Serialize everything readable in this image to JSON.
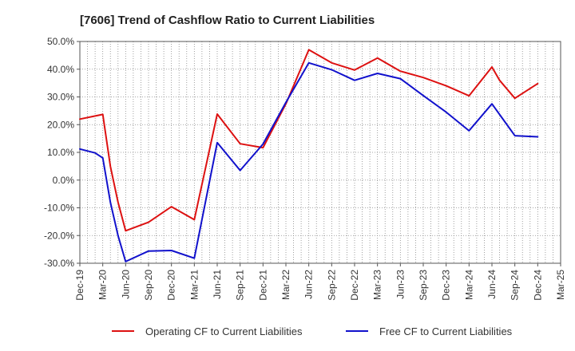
{
  "chart_data": {
    "type": "line",
    "title": "[7606]  Trend of Cashflow Ratio to Current Liabilities",
    "xlabel": "",
    "ylabel": "",
    "ylim": [
      -30,
      50
    ],
    "y_ticks": [
      "50.0%",
      "40.0%",
      "30.0%",
      "20.0%",
      "10.0%",
      "0.0%",
      "-10.0%",
      "-20.0%",
      "-30.0%"
    ],
    "y_tick_values": [
      50,
      40,
      30,
      20,
      10,
      0,
      -10,
      -20,
      -30
    ],
    "x_tick_labels": [
      "Dec-19",
      "Mar-20",
      "Jun-20",
      "Sep-20",
      "Dec-20",
      "Mar-21",
      "Jun-21",
      "Sep-21",
      "Dec-21",
      "Mar-22",
      "Jun-22",
      "Sep-22",
      "Dec-22",
      "Mar-23",
      "Jun-23",
      "Sep-23",
      "Dec-23",
      "Mar-24",
      "Jun-24",
      "Sep-24",
      "Dec-24",
      "Mar-25"
    ],
    "categories": [
      "Dec-19",
      "Jan-20",
      "Feb-20",
      "Mar-20",
      "Apr-20",
      "May-20",
      "Jun-20",
      "Jul-20",
      "Aug-20",
      "Sep-20",
      "Oct-20",
      "Nov-20",
      "Dec-20",
      "Jan-21",
      "Feb-21",
      "Mar-21",
      "Apr-21",
      "May-21",
      "Jun-21",
      "Jul-21",
      "Aug-21",
      "Sep-21",
      "Oct-21",
      "Nov-21",
      "Dec-21",
      "Jan-22",
      "Feb-22",
      "Mar-22",
      "Apr-22",
      "May-22",
      "Jun-22",
      "Jul-22",
      "Aug-22",
      "Sep-22",
      "Oct-22",
      "Nov-22",
      "Dec-22",
      "Jan-23",
      "Feb-23",
      "Mar-23",
      "Apr-23",
      "May-23",
      "Jun-23",
      "Jul-23",
      "Aug-23",
      "Sep-23",
      "Oct-23",
      "Nov-23",
      "Dec-23",
      "Jan-24",
      "Feb-24",
      "Mar-24",
      "Apr-24",
      "May-24",
      "Jun-24",
      "Jul-24",
      "Aug-24",
      "Sep-24",
      "Oct-24",
      "Nov-24",
      "Dec-24",
      "Jan-25",
      "Feb-25",
      "Mar-25"
    ],
    "grid": true,
    "legend_position": "bottom",
    "series": [
      {
        "name": "Operating CF to Current Liabilities",
        "color": "#dd1111",
        "points": [
          {
            "x": "Dec-19",
            "y": 22.0
          },
          {
            "x": "Mar-20",
            "y": 23.7
          },
          {
            "x": "Apr-20",
            "y": 5.0
          },
          {
            "x": "May-20",
            "y": -8.0
          },
          {
            "x": "Jun-20",
            "y": -18.3
          },
          {
            "x": "Sep-20",
            "y": -15.2
          },
          {
            "x": "Dec-20",
            "y": -9.6
          },
          {
            "x": "Mar-21",
            "y": -14.3
          },
          {
            "x": "Jun-21",
            "y": 23.8
          },
          {
            "x": "Sep-21",
            "y": 13.1
          },
          {
            "x": "Dec-21",
            "y": 11.7
          },
          {
            "x": "Mar-22",
            "y": 27.5
          },
          {
            "x": "Jun-22",
            "y": 47.0
          },
          {
            "x": "Sep-22",
            "y": 42.3
          },
          {
            "x": "Dec-22",
            "y": 39.7
          },
          {
            "x": "Mar-23",
            "y": 44.0
          },
          {
            "x": "Jun-23",
            "y": 39.3
          },
          {
            "x": "Sep-23",
            "y": 37.0
          },
          {
            "x": "Dec-23",
            "y": 34.0
          },
          {
            "x": "Mar-24",
            "y": 30.4
          },
          {
            "x": "Jun-24",
            "y": 40.8
          },
          {
            "x": "Jul-24",
            "y": 36.0
          },
          {
            "x": "Sep-24",
            "y": 29.5
          },
          {
            "x": "Dec-24",
            "y": 34.8
          }
        ]
      },
      {
        "name": "Free CF to Current Liabilities",
        "color": "#1111cc",
        "points": [
          {
            "x": "Dec-19",
            "y": 11.2
          },
          {
            "x": "Feb-20",
            "y": 9.8
          },
          {
            "x": "Mar-20",
            "y": 8.0
          },
          {
            "x": "Apr-20",
            "y": -8.0
          },
          {
            "x": "May-20",
            "y": -20.0
          },
          {
            "x": "Jun-20",
            "y": -29.4
          },
          {
            "x": "Sep-20",
            "y": -25.6
          },
          {
            "x": "Dec-20",
            "y": -25.4
          },
          {
            "x": "Mar-21",
            "y": -28.2
          },
          {
            "x": "Jun-21",
            "y": 13.5
          },
          {
            "x": "Sep-21",
            "y": 3.5
          },
          {
            "x": "Dec-21",
            "y": 13.0
          },
          {
            "x": "Mar-22",
            "y": 28.0
          },
          {
            "x": "Jun-22",
            "y": 42.3
          },
          {
            "x": "Sep-22",
            "y": 39.8
          },
          {
            "x": "Dec-22",
            "y": 36.0
          },
          {
            "x": "Mar-23",
            "y": 38.5
          },
          {
            "x": "Jun-23",
            "y": 36.6
          },
          {
            "x": "Sep-23",
            "y": 30.5
          },
          {
            "x": "Dec-23",
            "y": 24.5
          },
          {
            "x": "Mar-24",
            "y": 17.8
          },
          {
            "x": "Jun-24",
            "y": 27.5
          },
          {
            "x": "Sep-24",
            "y": 16.0
          },
          {
            "x": "Dec-24",
            "y": 15.6
          }
        ]
      }
    ]
  }
}
